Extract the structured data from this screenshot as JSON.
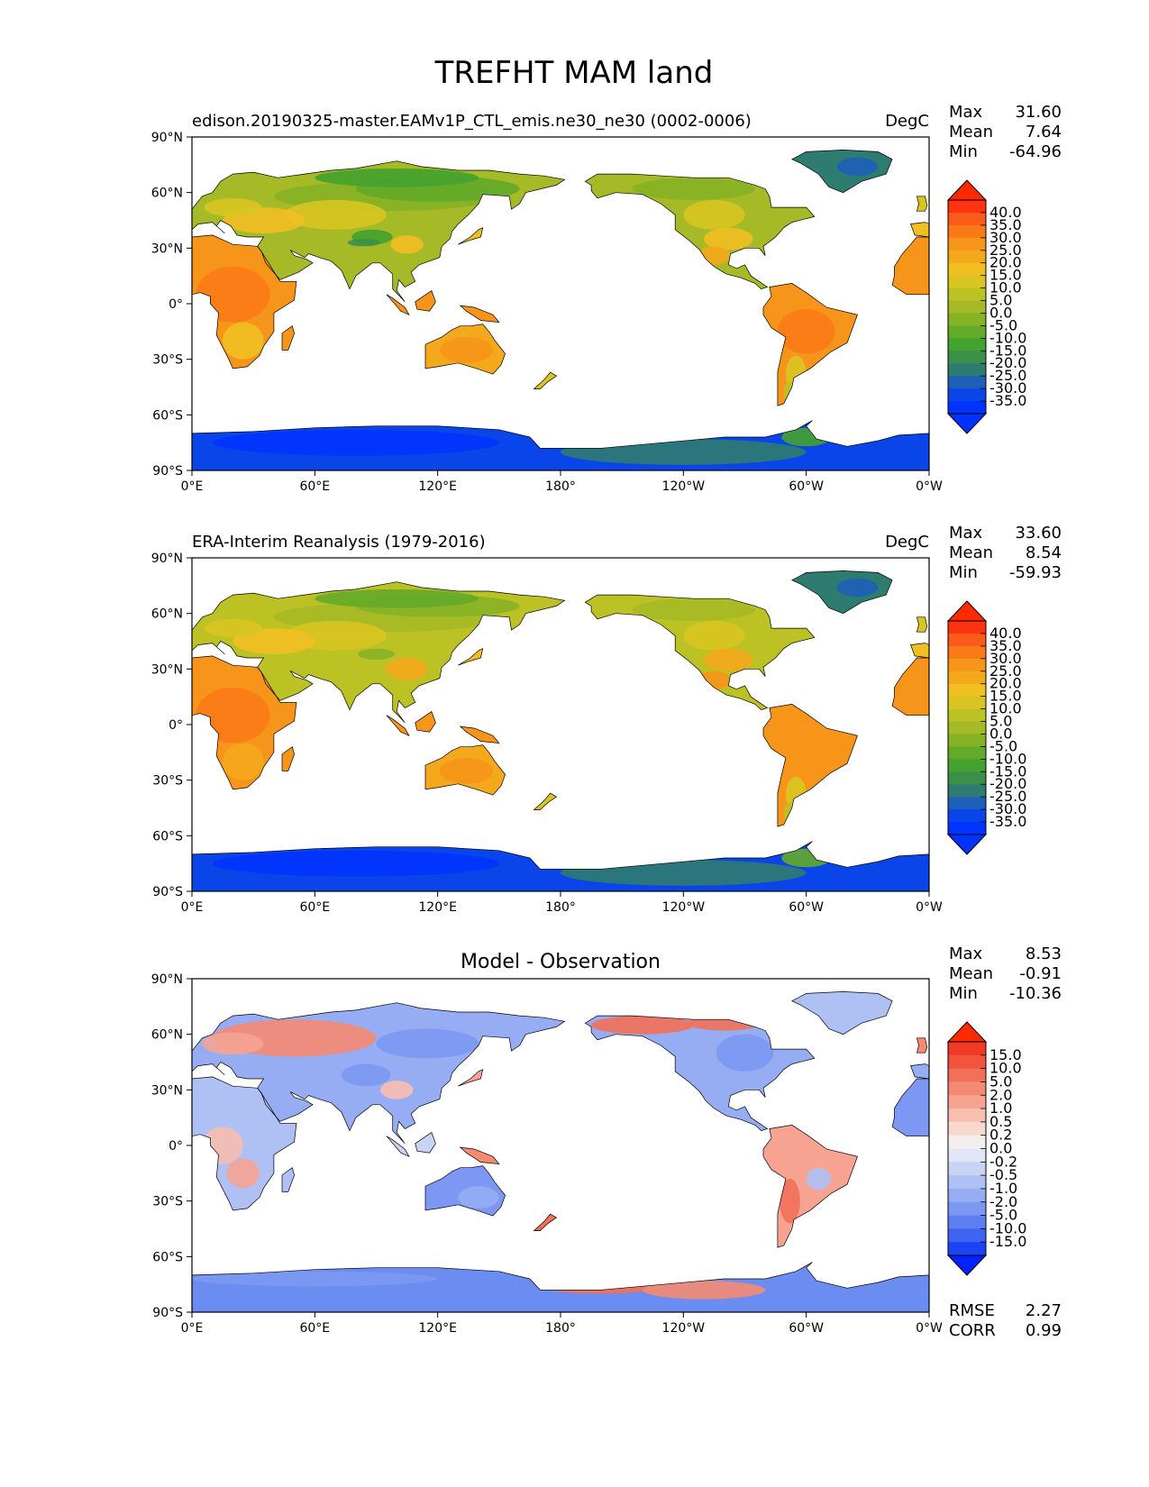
{
  "title": "TREFHT MAM land",
  "lat_ticks": [
    "90°N",
    "60°N",
    "30°N",
    "0°",
    "30°S",
    "60°S",
    "90°S"
  ],
  "lon_ticks": [
    "0°E",
    "60°E",
    "120°E",
    "180°",
    "120°W",
    "60°W",
    "0°W"
  ],
  "panels": [
    {
      "left_title": "edison.20190325-master.EAMv1P_CTL_emis.ne30_ne30 (0002-0006)",
      "center_title": "",
      "units": "DegC",
      "stats": [
        {
          "label": "Max",
          "value": "31.60"
        },
        {
          "label": "Mean",
          "value": "7.64"
        },
        {
          "label": "Min",
          "value": "-64.96"
        }
      ],
      "colorbar": {
        "labels": [
          "40.0",
          "35.0",
          "30.0",
          "25.0",
          "20.0",
          "15.0",
          "10.0",
          "5.0",
          "0.0",
          "-5.0",
          "-10.0",
          "-15.0",
          "-20.0",
          "-25.0",
          "-30.0",
          "-35.0"
        ],
        "colors": [
          "#ff3311",
          "#fc5a1a",
          "#fa7a18",
          "#f7951b",
          "#f4a81c",
          "#f2bf23",
          "#d8c521",
          "#bcc124",
          "#a5ba26",
          "#86b326",
          "#63aa29",
          "#44a22e",
          "#3b8f48",
          "#2e7b70",
          "#1e5fb8",
          "#0a45ea",
          "#0033ff"
        ],
        "top_color": "#ff2a00",
        "bottom_color": "#0033ff"
      },
      "extra": []
    },
    {
      "left_title": "ERA-Interim Reanalysis (1979-2016)",
      "center_title": "",
      "units": "DegC",
      "stats": [
        {
          "label": "Max",
          "value": "33.60"
        },
        {
          "label": "Mean",
          "value": "8.54"
        },
        {
          "label": "Min",
          "value": "-59.93"
        }
      ],
      "colorbar": {
        "labels": [
          "40.0",
          "35.0",
          "30.0",
          "25.0",
          "20.0",
          "15.0",
          "10.0",
          "5.0",
          "0.0",
          "-5.0",
          "-10.0",
          "-15.0",
          "-20.0",
          "-25.0",
          "-30.0",
          "-35.0"
        ],
        "colors": [
          "#ff3311",
          "#fc5a1a",
          "#fa7a18",
          "#f7951b",
          "#f4a81c",
          "#f2bf23",
          "#d8c521",
          "#bcc124",
          "#a5ba26",
          "#86b326",
          "#63aa29",
          "#44a22e",
          "#3b8f48",
          "#2e7b70",
          "#1e5fb8",
          "#0a45ea",
          "#0033ff"
        ],
        "top_color": "#ff2a00",
        "bottom_color": "#0033ff"
      },
      "extra": []
    },
    {
      "left_title": "",
      "center_title": "Model - Observation",
      "units": "",
      "stats": [
        {
          "label": "Max",
          "value": "8.53"
        },
        {
          "label": "Mean",
          "value": "-0.91"
        },
        {
          "label": "Min",
          "value": "-10.36"
        }
      ],
      "colorbar": {
        "labels": [
          "15.0",
          "10.0",
          "5.0",
          "2.0",
          "1.0",
          "0.5",
          "0.2",
          "0.0",
          "-0.2",
          "-0.5",
          "-1.0",
          "-2.0",
          "-5.0",
          "-10.0",
          "-15.0"
        ],
        "colors": [
          "#f03a26",
          "#f2543e",
          "#f37058",
          "#f58a73",
          "#f6a392",
          "#f8beb0",
          "#f9d8cf",
          "#f5eeee",
          "#e2e6f6",
          "#c9d3f5",
          "#afc0f4",
          "#96adf3",
          "#7c98f2",
          "#5f7ff1",
          "#3f64f2",
          "#1a44f5"
        ],
        "top_color": "#ff2a00",
        "bottom_color": "#0022ff"
      },
      "extra": [
        {
          "label": "RMSE",
          "value": "2.27"
        },
        {
          "label": "CORR",
          "value": "0.99"
        }
      ]
    }
  ],
  "colors": {
    "ocean": "#ffffff",
    "antarctica_panel_1": "#0a45ea",
    "antarctica_panel_3": "#6b8cf0"
  }
}
